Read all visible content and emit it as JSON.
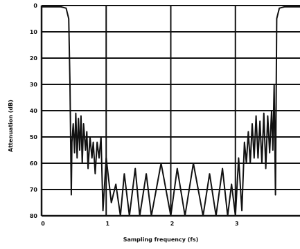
{
  "chart_data": {
    "type": "line",
    "xlabel": "Sampling frequency (fs)",
    "ylabel": "Attenuation (dB)",
    "xlim": [
      0,
      4.0
    ],
    "ylim": [
      0,
      80
    ],
    "y_inverted": true,
    "grid": true,
    "x_ticks": [
      {
        "value": 0,
        "label": "0"
      },
      {
        "value": 1,
        "label": "1"
      },
      {
        "value": 2,
        "label": "2"
      },
      {
        "value": 3,
        "label": "3"
      }
    ],
    "y_ticks": [
      {
        "value": 0,
        "label": "0"
      },
      {
        "value": 10,
        "label": "10"
      },
      {
        "value": 20,
        "label": "20"
      },
      {
        "value": 30,
        "label": "30"
      },
      {
        "value": 40,
        "label": "40"
      },
      {
        "value": 50,
        "label": "50"
      },
      {
        "value": 60,
        "label": "60"
      },
      {
        "value": 70,
        "label": "70"
      },
      {
        "value": 80,
        "label": "80"
      }
    ],
    "series": [
      {
        "color": "#111111",
        "points": [
          [
            0.0,
            0.5
          ],
          [
            0.3,
            0.5
          ],
          [
            0.38,
            1
          ],
          [
            0.42,
            5
          ],
          [
            0.44,
            30
          ],
          [
            0.46,
            72
          ],
          [
            0.47,
            52
          ],
          [
            0.49,
            45
          ],
          [
            0.51,
            56
          ],
          [
            0.53,
            41
          ],
          [
            0.55,
            58
          ],
          [
            0.57,
            43
          ],
          [
            0.59,
            55
          ],
          [
            0.61,
            42
          ],
          [
            0.63,
            60
          ],
          [
            0.65,
            45
          ],
          [
            0.68,
            55
          ],
          [
            0.7,
            48
          ],
          [
            0.72,
            62
          ],
          [
            0.75,
            50
          ],
          [
            0.78,
            58
          ],
          [
            0.8,
            52
          ],
          [
            0.83,
            64
          ],
          [
            0.86,
            52
          ],
          [
            0.89,
            58
          ],
          [
            0.92,
            50
          ],
          [
            0.95,
            78
          ],
          [
            1.0,
            58
          ],
          [
            1.08,
            75
          ],
          [
            1.15,
            68
          ],
          [
            1.22,
            80
          ],
          [
            1.28,
            64
          ],
          [
            1.36,
            80
          ],
          [
            1.45,
            62
          ],
          [
            1.52,
            80
          ],
          [
            1.62,
            64
          ],
          [
            1.7,
            80
          ],
          [
            1.85,
            60
          ],
          [
            2.0,
            80
          ],
          [
            2.1,
            62
          ],
          [
            2.22,
            80
          ],
          [
            2.35,
            60
          ],
          [
            2.5,
            80
          ],
          [
            2.6,
            64
          ],
          [
            2.7,
            80
          ],
          [
            2.8,
            62
          ],
          [
            2.88,
            80
          ],
          [
            2.94,
            68
          ],
          [
            3.0,
            80
          ],
          [
            3.05,
            58
          ],
          [
            3.1,
            78
          ],
          [
            3.14,
            52
          ],
          [
            3.17,
            60
          ],
          [
            3.2,
            48
          ],
          [
            3.23,
            60
          ],
          [
            3.26,
            45
          ],
          [
            3.29,
            58
          ],
          [
            3.32,
            42
          ],
          [
            3.35,
            58
          ],
          [
            3.38,
            44
          ],
          [
            3.41,
            60
          ],
          [
            3.44,
            41
          ],
          [
            3.47,
            62
          ],
          [
            3.5,
            42
          ],
          [
            3.53,
            56
          ],
          [
            3.56,
            40
          ],
          [
            3.58,
            55
          ],
          [
            3.6,
            30
          ],
          [
            3.62,
            72
          ],
          [
            3.64,
            5
          ],
          [
            3.68,
            1
          ],
          [
            3.76,
            0.5
          ],
          [
            4.0,
            0.5
          ]
        ]
      }
    ]
  }
}
